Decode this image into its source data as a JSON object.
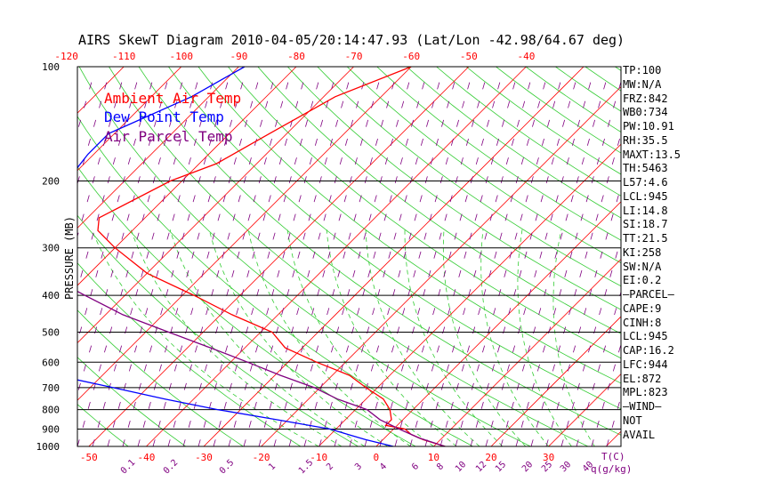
{
  "chart_data": {
    "type": "line",
    "title": "AIRS SkewT Diagram 2010-04-05/20:14:47.93 (Lat/Lon -42.98/64.67 deg)",
    "ylabel": "PRESSURE (MB)",
    "x_unit_label": "T(C)",
    "q_unit_label": "q(g/kg)",
    "pressure_ticks": [
      "100",
      "200",
      "300",
      "400",
      "500",
      "600",
      "700",
      "800",
      "900",
      "1000"
    ],
    "pressure_values": [
      100,
      200,
      300,
      400,
      500,
      600,
      700,
      800,
      900,
      1000
    ],
    "top_temp_ticks": [
      "-120",
      "-110",
      "-100",
      "-90",
      "-80",
      "-70",
      "-60",
      "-50",
      "-40"
    ],
    "bottom_temp_ticks": [
      "-50",
      "-40",
      "-30",
      "-20",
      "-10",
      "0",
      "10",
      "20",
      "30"
    ],
    "q_ticks": [
      "0.1",
      "0.2",
      "0.5",
      "1",
      "1.5",
      "2",
      "3",
      "4",
      "6",
      "8",
      "10",
      "12",
      "15",
      "20",
      "25",
      "30",
      "40"
    ],
    "legend": [
      {
        "name": "Ambient Air Temp",
        "color": "#ff0000"
      },
      {
        "name": "Dew Point Temp",
        "color": "#0000ff"
      },
      {
        "name": "Air Parcel Temp",
        "color": "#800080"
      }
    ],
    "series": [
      {
        "name": "Ambient Air Temp",
        "color": "#ff0000",
        "points": [
          [
            100,
            -60
          ],
          [
            120,
            -68
          ],
          [
            150,
            -73
          ],
          [
            180,
            -77
          ],
          [
            200,
            -82
          ],
          [
            250,
            -88
          ],
          [
            270,
            -86
          ],
          [
            300,
            -80
          ],
          [
            350,
            -70
          ],
          [
            400,
            -58
          ],
          [
            450,
            -48
          ],
          [
            500,
            -38
          ],
          [
            550,
            -33
          ],
          [
            600,
            -25
          ],
          [
            650,
            -17
          ],
          [
            700,
            -12
          ],
          [
            750,
            -7
          ],
          [
            800,
            -4
          ],
          [
            850,
            -2
          ],
          [
            880,
            -2
          ],
          [
            900,
            2
          ],
          [
            930,
            4
          ],
          [
            960,
            7
          ],
          [
            1000,
            12
          ]
        ]
      },
      {
        "name": "Dew Point Temp",
        "color": "#0000ff",
        "points": [
          [
            100,
            -89
          ],
          [
            120,
            -93
          ],
          [
            150,
            -101
          ],
          [
            170,
            -101
          ],
          [
            200,
            -100
          ],
          [
            250,
            -98
          ],
          [
            300,
            -92
          ],
          [
            350,
            -89
          ],
          [
            400,
            -89
          ],
          [
            450,
            -90
          ],
          [
            500,
            -91
          ],
          [
            550,
            -86
          ],
          [
            600,
            -82
          ],
          [
            650,
            -68
          ],
          [
            700,
            -56
          ],
          [
            750,
            -45
          ],
          [
            800,
            -34
          ],
          [
            850,
            -22
          ],
          [
            900,
            -11
          ],
          [
            930,
            -7
          ],
          [
            960,
            -3
          ],
          [
            1000,
            3
          ]
        ]
      },
      {
        "name": "Air Parcel Temp",
        "color": "#800080",
        "points": [
          [
            100,
            -120
          ],
          [
            150,
            -116
          ],
          [
            200,
            -114
          ],
          [
            250,
            -107
          ],
          [
            300,
            -98
          ],
          [
            350,
            -88
          ],
          [
            400,
            -77
          ],
          [
            450,
            -67
          ],
          [
            500,
            -56
          ],
          [
            550,
            -46
          ],
          [
            600,
            -37
          ],
          [
            650,
            -29
          ],
          [
            700,
            -21
          ],
          [
            750,
            -15
          ],
          [
            800,
            -8
          ],
          [
            850,
            -4
          ],
          [
            900,
            1
          ],
          [
            950,
            6
          ],
          [
            1000,
            12
          ]
        ]
      }
    ],
    "wind_status": [
      "NOT",
      "AVAIL"
    ],
    "grid": true,
    "legend_placement": "top-left"
  },
  "stats": [
    "TP:100",
    "MW:N/A",
    "FRZ:842",
    "WB0:734",
    "PW:10.91",
    "RH:35.5",
    "MAXT:13.5",
    "TH:5463",
    "L57:4.6",
    "LCL:945",
    "LI:14.8",
    "SI:18.7",
    "TT:21.5",
    "KI:258",
    "SW:N/A",
    "EI:0.2",
    "—PARCEL—",
    "CAPE:9",
    "CINH:8",
    "LCL:945",
    "CAP:16.2",
    "LFC:944",
    "EL:872",
    "MPL:823",
    "—WIND—",
    "NOT",
    "AVAIL"
  ]
}
